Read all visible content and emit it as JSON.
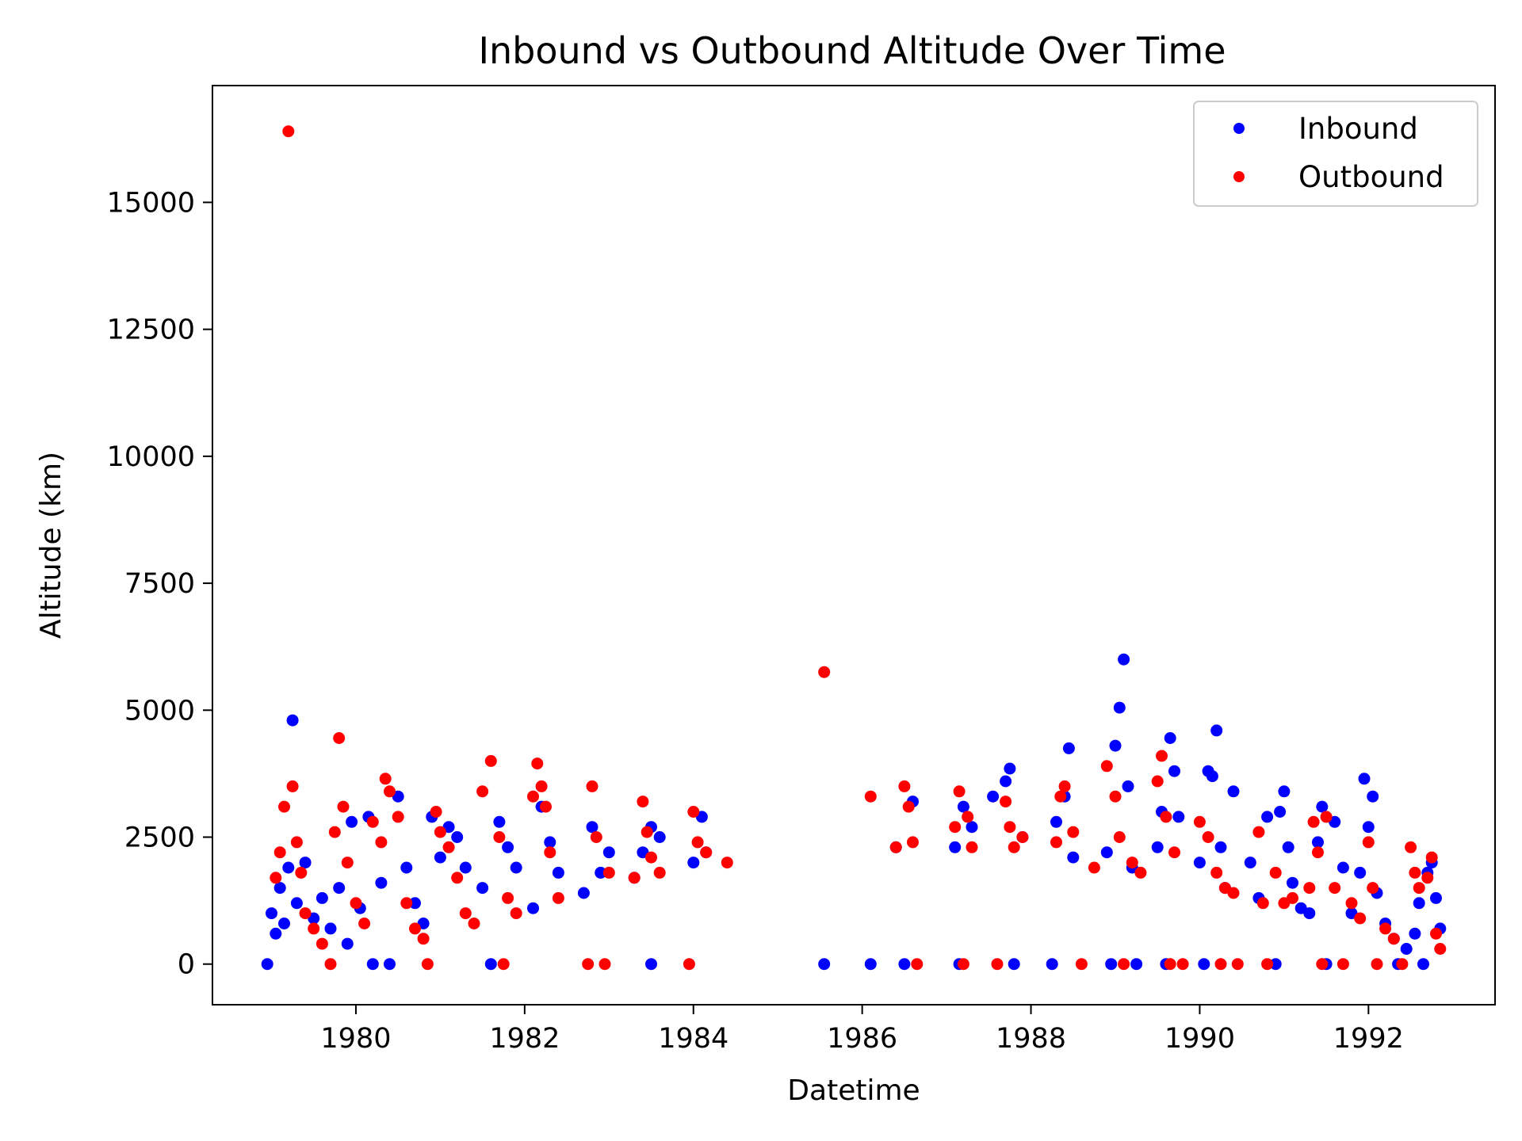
{
  "chart_data": {
    "type": "scatter",
    "title": "Inbound vs Outbound Altitude Over Time",
    "xlabel": "Datetime",
    "ylabel": "Altitude (km)",
    "xlim": [
      1978.3,
      1993.5
    ],
    "ylim": [
      -800,
      17300
    ],
    "x_ticks": [
      1980,
      1982,
      1984,
      1986,
      1988,
      1990,
      1992
    ],
    "y_ticks": [
      0,
      2500,
      5000,
      7500,
      10000,
      12500,
      15000
    ],
    "grid": false,
    "legend": "top-right",
    "colors": {
      "Inbound": "#0000ff",
      "Outbound": "#ff0000"
    },
    "series": [
      {
        "name": "Inbound",
        "color": "#0000ff",
        "points": [
          [
            1978.95,
            0
          ],
          [
            1979.0,
            1000
          ],
          [
            1979.05,
            600
          ],
          [
            1979.1,
            1500
          ],
          [
            1979.15,
            800
          ],
          [
            1979.2,
            1900
          ],
          [
            1979.25,
            4800
          ],
          [
            1979.3,
            1200
          ],
          [
            1979.4,
            2000
          ],
          [
            1979.5,
            900
          ],
          [
            1979.6,
            1300
          ],
          [
            1979.7,
            700
          ],
          [
            1979.8,
            1500
          ],
          [
            1979.9,
            400
          ],
          [
            1979.95,
            2800
          ],
          [
            1980.05,
            1100
          ],
          [
            1980.15,
            2900
          ],
          [
            1980.2,
            0
          ],
          [
            1980.3,
            1600
          ],
          [
            1980.4,
            0
          ],
          [
            1980.5,
            3300
          ],
          [
            1980.6,
            1900
          ],
          [
            1980.7,
            1200
          ],
          [
            1980.8,
            800
          ],
          [
            1980.9,
            2900
          ],
          [
            1981.0,
            2100
          ],
          [
            1981.1,
            2700
          ],
          [
            1981.2,
            2500
          ],
          [
            1981.3,
            1900
          ],
          [
            1981.5,
            1500
          ],
          [
            1981.6,
            0
          ],
          [
            1981.7,
            2800
          ],
          [
            1981.8,
            2300
          ],
          [
            1981.9,
            1900
          ],
          [
            1982.1,
            1100
          ],
          [
            1982.2,
            3100
          ],
          [
            1982.3,
            2400
          ],
          [
            1982.4,
            1800
          ],
          [
            1982.7,
            1400
          ],
          [
            1982.8,
            2700
          ],
          [
            1982.9,
            1800
          ],
          [
            1983.0,
            2200
          ],
          [
            1983.3,
            1700
          ],
          [
            1983.4,
            2200
          ],
          [
            1983.5,
            2700
          ],
          [
            1983.5,
            0
          ],
          [
            1983.6,
            2500
          ],
          [
            1984.0,
            2000
          ],
          [
            1984.1,
            2900
          ],
          [
            1984.15,
            2200
          ],
          [
            1985.55,
            0
          ],
          [
            1986.1,
            0
          ],
          [
            1986.4,
            2300
          ],
          [
            1986.5,
            0
          ],
          [
            1986.6,
            3200
          ],
          [
            1987.1,
            2300
          ],
          [
            1987.15,
            0
          ],
          [
            1987.2,
            3100
          ],
          [
            1987.3,
            2700
          ],
          [
            1987.55,
            3300
          ],
          [
            1987.7,
            3600
          ],
          [
            1987.75,
            3850
          ],
          [
            1987.8,
            0
          ],
          [
            1987.9,
            2500
          ],
          [
            1988.25,
            0
          ],
          [
            1988.3,
            2800
          ],
          [
            1988.4,
            3300
          ],
          [
            1988.45,
            4250
          ],
          [
            1988.5,
            2100
          ],
          [
            1988.9,
            2200
          ],
          [
            1988.95,
            0
          ],
          [
            1989.0,
            4300
          ],
          [
            1989.05,
            5050
          ],
          [
            1989.1,
            6000
          ],
          [
            1989.15,
            3500
          ],
          [
            1989.2,
            1900
          ],
          [
            1989.25,
            0
          ],
          [
            1989.5,
            2300
          ],
          [
            1989.55,
            3000
          ],
          [
            1989.6,
            0
          ],
          [
            1989.65,
            4450
          ],
          [
            1989.7,
            3800
          ],
          [
            1989.75,
            2900
          ],
          [
            1990.0,
            2000
          ],
          [
            1990.05,
            0
          ],
          [
            1990.1,
            3800
          ],
          [
            1990.15,
            3700
          ],
          [
            1990.2,
            4600
          ],
          [
            1990.25,
            2300
          ],
          [
            1990.3,
            1500
          ],
          [
            1990.4,
            3400
          ],
          [
            1990.6,
            2000
          ],
          [
            1990.7,
            1300
          ],
          [
            1990.8,
            2900
          ],
          [
            1990.9,
            0
          ],
          [
            1990.95,
            3000
          ],
          [
            1991.0,
            3400
          ],
          [
            1991.05,
            2300
          ],
          [
            1991.1,
            1600
          ],
          [
            1991.2,
            1100
          ],
          [
            1991.3,
            1000
          ],
          [
            1991.4,
            2400
          ],
          [
            1991.45,
            3100
          ],
          [
            1991.5,
            0
          ],
          [
            1991.6,
            2800
          ],
          [
            1991.7,
            1900
          ],
          [
            1991.8,
            1000
          ],
          [
            1991.9,
            1800
          ],
          [
            1991.95,
            3650
          ],
          [
            1992.0,
            2700
          ],
          [
            1992.05,
            3300
          ],
          [
            1992.1,
            1400
          ],
          [
            1992.2,
            800
          ],
          [
            1992.3,
            500
          ],
          [
            1992.35,
            0
          ],
          [
            1992.45,
            300
          ],
          [
            1992.55,
            600
          ],
          [
            1992.6,
            1200
          ],
          [
            1992.65,
            0
          ],
          [
            1992.7,
            1800
          ],
          [
            1992.75,
            2000
          ],
          [
            1992.8,
            1300
          ],
          [
            1992.85,
            700
          ]
        ]
      },
      {
        "name": "Outbound",
        "color": "#ff0000",
        "points": [
          [
            1979.05,
            1700
          ],
          [
            1979.1,
            2200
          ],
          [
            1979.15,
            3100
          ],
          [
            1979.2,
            16400
          ],
          [
            1979.25,
            3500
          ],
          [
            1979.3,
            2400
          ],
          [
            1979.35,
            1800
          ],
          [
            1979.4,
            1000
          ],
          [
            1979.5,
            700
          ],
          [
            1979.6,
            400
          ],
          [
            1979.7,
            0
          ],
          [
            1979.75,
            2600
          ],
          [
            1979.8,
            4450
          ],
          [
            1979.85,
            3100
          ],
          [
            1979.9,
            2000
          ],
          [
            1980.0,
            1200
          ],
          [
            1980.1,
            800
          ],
          [
            1980.2,
            2800
          ],
          [
            1980.3,
            2400
          ],
          [
            1980.35,
            3650
          ],
          [
            1980.4,
            3400
          ],
          [
            1980.5,
            2900
          ],
          [
            1980.6,
            1200
          ],
          [
            1980.7,
            700
          ],
          [
            1980.8,
            500
          ],
          [
            1980.85,
            0
          ],
          [
            1980.95,
            3000
          ],
          [
            1981.0,
            2600
          ],
          [
            1981.1,
            2300
          ],
          [
            1981.2,
            1700
          ],
          [
            1981.3,
            1000
          ],
          [
            1981.4,
            800
          ],
          [
            1981.5,
            3400
          ],
          [
            1981.6,
            4000
          ],
          [
            1981.7,
            2500
          ],
          [
            1981.75,
            0
          ],
          [
            1981.8,
            1300
          ],
          [
            1981.9,
            1000
          ],
          [
            1982.1,
            3300
          ],
          [
            1982.15,
            3950
          ],
          [
            1982.2,
            3500
          ],
          [
            1982.25,
            3100
          ],
          [
            1982.3,
            2200
          ],
          [
            1982.4,
            1300
          ],
          [
            1982.75,
            0
          ],
          [
            1982.8,
            3500
          ],
          [
            1982.85,
            2500
          ],
          [
            1982.95,
            0
          ],
          [
            1983.0,
            1800
          ],
          [
            1983.3,
            1700
          ],
          [
            1983.4,
            3200
          ],
          [
            1983.45,
            2600
          ],
          [
            1983.5,
            2100
          ],
          [
            1983.6,
            1800
          ],
          [
            1983.95,
            0
          ],
          [
            1984.0,
            3000
          ],
          [
            1984.05,
            2400
          ],
          [
            1984.15,
            2200
          ],
          [
            1984.4,
            2000
          ],
          [
            1985.55,
            5750
          ],
          [
            1986.1,
            3300
          ],
          [
            1986.4,
            2300
          ],
          [
            1986.5,
            3500
          ],
          [
            1986.55,
            3100
          ],
          [
            1986.6,
            2400
          ],
          [
            1986.65,
            0
          ],
          [
            1987.1,
            2700
          ],
          [
            1987.15,
            3400
          ],
          [
            1987.2,
            0
          ],
          [
            1987.25,
            2900
          ],
          [
            1987.3,
            2300
          ],
          [
            1987.6,
            0
          ],
          [
            1987.7,
            3200
          ],
          [
            1987.75,
            2700
          ],
          [
            1987.8,
            2300
          ],
          [
            1987.9,
            2500
          ],
          [
            1988.3,
            2400
          ],
          [
            1988.35,
            3300
          ],
          [
            1988.4,
            3500
          ],
          [
            1988.5,
            2600
          ],
          [
            1988.6,
            0
          ],
          [
            1988.75,
            1900
          ],
          [
            1988.9,
            3900
          ],
          [
            1989.0,
            3300
          ],
          [
            1989.05,
            2500
          ],
          [
            1989.1,
            0
          ],
          [
            1989.2,
            2000
          ],
          [
            1989.3,
            1800
          ],
          [
            1989.5,
            3600
          ],
          [
            1989.55,
            4100
          ],
          [
            1989.6,
            2900
          ],
          [
            1989.65,
            0
          ],
          [
            1989.7,
            2200
          ],
          [
            1989.8,
            0
          ],
          [
            1990.0,
            2800
          ],
          [
            1990.1,
            2500
          ],
          [
            1990.2,
            1800
          ],
          [
            1990.25,
            0
          ],
          [
            1990.3,
            1500
          ],
          [
            1990.4,
            1400
          ],
          [
            1990.45,
            0
          ],
          [
            1990.7,
            2600
          ],
          [
            1990.75,
            1200
          ],
          [
            1990.8,
            0
          ],
          [
            1990.9,
            1800
          ],
          [
            1991.0,
            1200
          ],
          [
            1991.1,
            1300
          ],
          [
            1991.3,
            1500
          ],
          [
            1991.35,
            2800
          ],
          [
            1991.4,
            2200
          ],
          [
            1991.45,
            0
          ],
          [
            1991.5,
            2900
          ],
          [
            1991.6,
            1500
          ],
          [
            1991.7,
            0
          ],
          [
            1991.8,
            1200
          ],
          [
            1991.9,
            900
          ],
          [
            1992.0,
            2400
          ],
          [
            1992.05,
            1500
          ],
          [
            1992.1,
            0
          ],
          [
            1992.2,
            700
          ],
          [
            1992.3,
            500
          ],
          [
            1992.4,
            0
          ],
          [
            1992.5,
            2300
          ],
          [
            1992.55,
            1800
          ],
          [
            1992.6,
            1500
          ],
          [
            1992.7,
            1700
          ],
          [
            1992.75,
            2100
          ],
          [
            1992.8,
            600
          ],
          [
            1992.85,
            300
          ]
        ]
      }
    ]
  }
}
